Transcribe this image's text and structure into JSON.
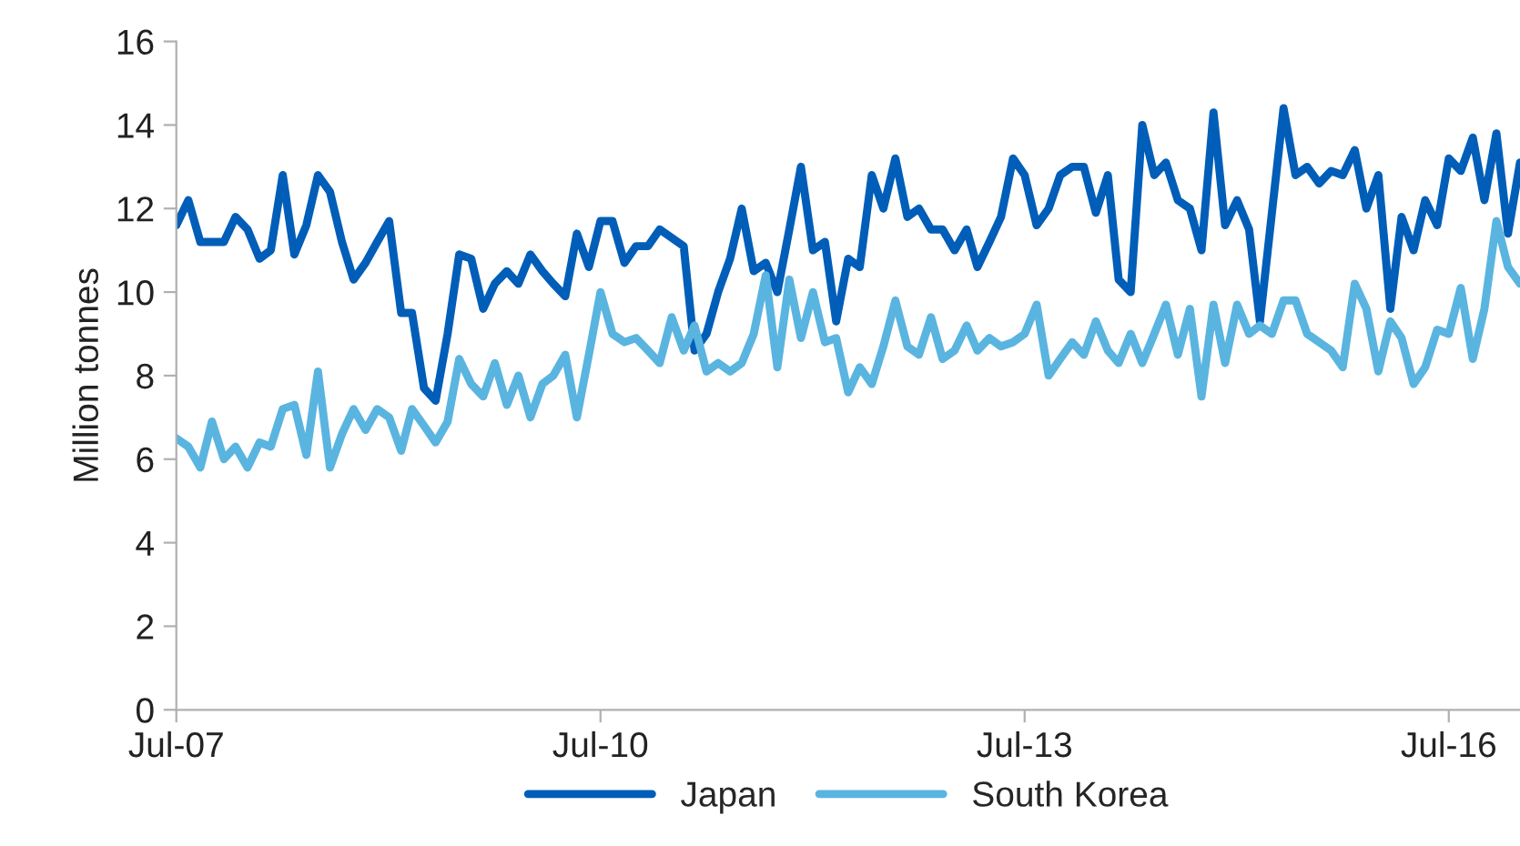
{
  "chart_data": {
    "type": "line",
    "ylabel": "Million tonnes",
    "x": [
      "2007-07",
      "2007-08",
      "2007-09",
      "2007-10",
      "2007-11",
      "2007-12",
      "2008-01",
      "2008-02",
      "2008-03",
      "2008-04",
      "2008-05",
      "2008-06",
      "2008-07",
      "2008-08",
      "2008-09",
      "2008-10",
      "2008-11",
      "2008-12",
      "2009-01",
      "2009-02",
      "2009-03",
      "2009-04",
      "2009-05",
      "2009-06",
      "2009-07",
      "2009-08",
      "2009-09",
      "2009-10",
      "2009-11",
      "2009-12",
      "2010-01",
      "2010-02",
      "2010-03",
      "2010-04",
      "2010-05",
      "2010-06",
      "2010-07",
      "2010-08",
      "2010-09",
      "2010-10",
      "2010-11",
      "2010-12",
      "2011-01",
      "2011-02",
      "2011-03",
      "2011-04",
      "2011-05",
      "2011-06",
      "2011-07",
      "2011-08",
      "2011-09",
      "2011-10",
      "2011-11",
      "2011-12",
      "2012-01",
      "2012-02",
      "2012-03",
      "2012-04",
      "2012-05",
      "2012-06",
      "2012-07",
      "2012-08",
      "2012-09",
      "2012-10",
      "2012-11",
      "2012-12",
      "2013-01",
      "2013-02",
      "2013-03",
      "2013-04",
      "2013-05",
      "2013-06",
      "2013-07",
      "2013-08",
      "2013-09",
      "2013-10",
      "2013-11",
      "2013-12",
      "2014-01",
      "2014-02",
      "2014-03",
      "2014-04",
      "2014-05",
      "2014-06",
      "2014-07",
      "2014-08",
      "2014-09",
      "2014-10",
      "2014-11",
      "2014-12",
      "2015-01",
      "2015-02",
      "2015-03",
      "2015-04",
      "2015-05",
      "2015-06",
      "2015-07",
      "2015-08",
      "2015-09",
      "2015-10",
      "2015-11",
      "2015-12",
      "2016-01",
      "2016-02",
      "2016-03",
      "2016-04",
      "2016-05",
      "2016-06",
      "2016-07",
      "2016-08",
      "2016-09",
      "2016-10",
      "2016-11",
      "2016-12",
      "2017-01"
    ],
    "series": [
      {
        "name": "Japan",
        "color": "#005eb8",
        "values": [
          11.6,
          12.2,
          11.2,
          11.2,
          11.2,
          11.8,
          11.5,
          10.8,
          11.0,
          12.8,
          10.9,
          11.6,
          12.8,
          12.4,
          11.2,
          10.3,
          10.7,
          11.2,
          11.7,
          9.5,
          9.5,
          7.7,
          7.4,
          9.0,
          10.9,
          10.8,
          9.6,
          10.2,
          10.5,
          10.2,
          10.9,
          10.5,
          10.2,
          9.9,
          11.4,
          10.6,
          11.7,
          11.7,
          10.7,
          11.1,
          11.1,
          11.5,
          11.3,
          11.1,
          8.6,
          9.0,
          10.0,
          10.8,
          12.0,
          10.5,
          10.7,
          10.0,
          11.5,
          13.0,
          11.0,
          11.2,
          9.3,
          10.8,
          10.6,
          12.8,
          12.0,
          13.2,
          11.8,
          12.0,
          11.5,
          11.5,
          11.0,
          11.5,
          10.6,
          11.2,
          11.8,
          13.2,
          12.8,
          11.6,
          12.0,
          12.8,
          13.0,
          13.0,
          11.9,
          12.8,
          10.3,
          10.0,
          14.0,
          12.8,
          13.1,
          12.2,
          12.0,
          11.0,
          14.3,
          11.6,
          12.2,
          11.5,
          9.3,
          11.9,
          14.4,
          12.8,
          13.0,
          12.6,
          12.9,
          12.8,
          13.4,
          12.0,
          12.8,
          9.6,
          11.8,
          11.0,
          12.2,
          11.6,
          13.2,
          12.9,
          13.7,
          12.2,
          13.8,
          11.4,
          13.1
        ]
      },
      {
        "name": "South Korea",
        "color": "#5ab4e0",
        "values": [
          6.5,
          6.3,
          5.8,
          6.9,
          6.0,
          6.3,
          5.8,
          6.4,
          6.3,
          7.2,
          7.3,
          6.1,
          8.1,
          5.8,
          6.6,
          7.2,
          6.7,
          7.2,
          7.0,
          6.2,
          7.2,
          6.8,
          6.4,
          6.9,
          8.4,
          7.8,
          7.5,
          8.3,
          7.3,
          8.0,
          7.0,
          7.8,
          8.0,
          8.5,
          7.0,
          8.5,
          10.0,
          9.0,
          8.8,
          8.9,
          8.6,
          8.3,
          9.4,
          8.6,
          9.2,
          8.1,
          8.3,
          8.1,
          8.3,
          9.0,
          10.4,
          8.2,
          10.3,
          8.9,
          10.0,
          8.8,
          8.9,
          7.6,
          8.2,
          7.8,
          8.7,
          9.8,
          8.7,
          8.5,
          9.4,
          8.4,
          8.6,
          9.2,
          8.6,
          8.9,
          8.7,
          8.8,
          9.0,
          9.7,
          8.0,
          8.4,
          8.8,
          8.5,
          9.3,
          8.6,
          8.3,
          9.0,
          8.3,
          9.0,
          9.7,
          8.5,
          9.6,
          7.5,
          9.7,
          8.3,
          9.7,
          9.0,
          9.2,
          9.0,
          9.8,
          9.8,
          9.0,
          8.8,
          8.6,
          8.2,
          10.2,
          9.6,
          8.1,
          9.3,
          8.9,
          7.8,
          8.2,
          9.1,
          9.0,
          10.1,
          8.4,
          9.6,
          11.7,
          10.6,
          10.2
        ]
      }
    ],
    "xlim": [
      "2007-07",
      "2017-01"
    ],
    "xticks": [
      {
        "value": "2007-07",
        "label": "Jul-07"
      },
      {
        "value": "2010-07",
        "label": "Jul-10"
      },
      {
        "value": "2013-07",
        "label": "Jul-13"
      },
      {
        "value": "2016-07",
        "label": "Jul-16"
      }
    ],
    "ylim": [
      0,
      16
    ],
    "yticks": [
      0,
      2,
      4,
      6,
      8,
      10,
      12,
      14,
      16
    ],
    "grid": false,
    "legend": "bottom",
    "marker": "none",
    "line_style": "solid"
  }
}
